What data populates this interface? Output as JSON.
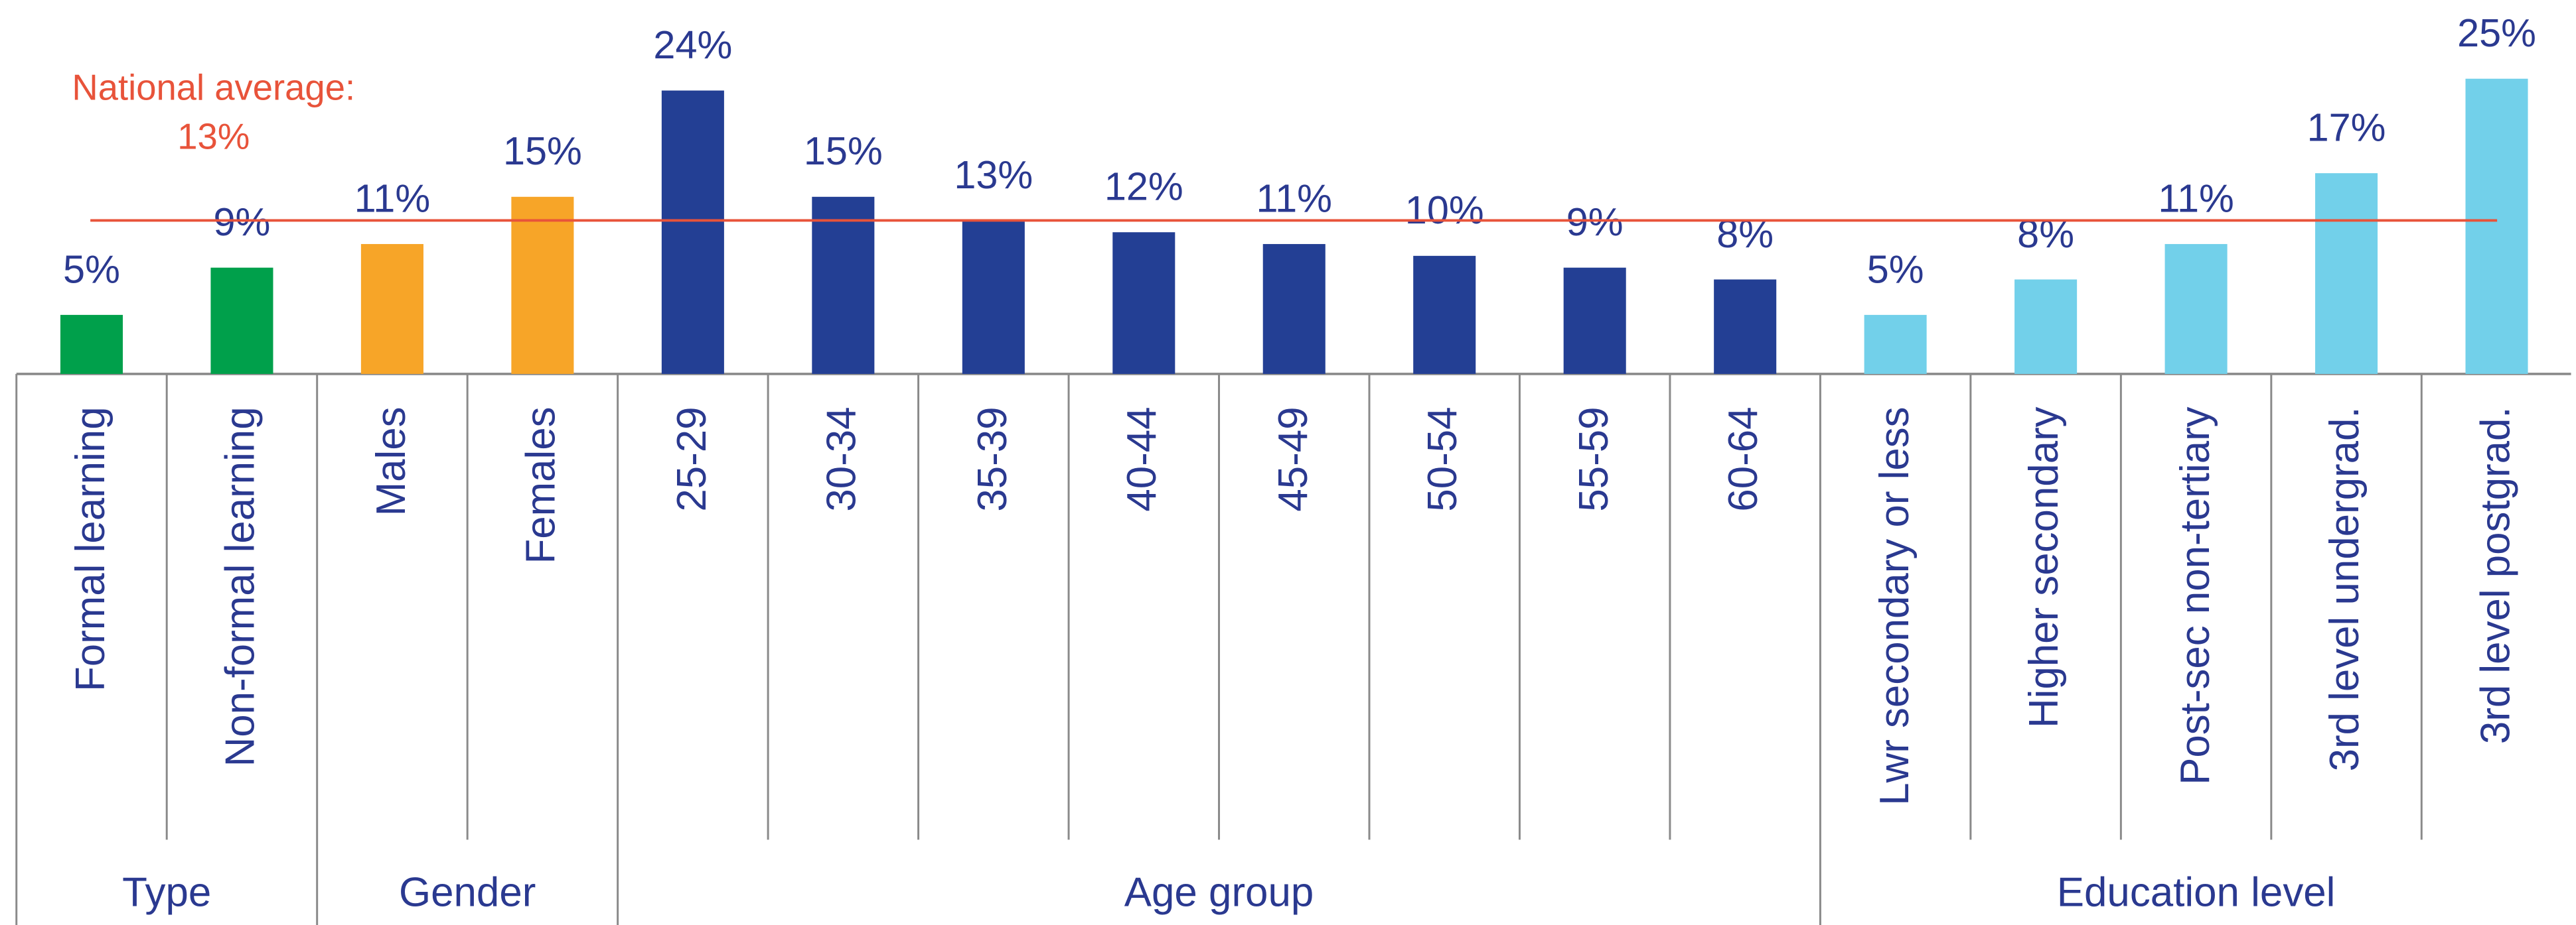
{
  "chart_data": {
    "type": "bar",
    "categories": [
      "Formal learning",
      "Non-formal learning",
      "Males",
      "Females",
      "25-29",
      "30-34",
      "35-39",
      "40-44",
      "45-49",
      "50-54",
      "55-59",
      "60-64",
      "Lwr secondary or less",
      "Higher secondary",
      "Post-sec non-tertiary",
      "3rd level undergrad.",
      "3rd level postgrad."
    ],
    "series": [
      {
        "name": "Type",
        "color": "#00a04b",
        "values": [
          5,
          9,
          null,
          null,
          null,
          null,
          null,
          null,
          null,
          null,
          null,
          null,
          null,
          null,
          null,
          null,
          null
        ],
        "value_labels": [
          "5%",
          "9%",
          null,
          null,
          null,
          null,
          null,
          null,
          null,
          null,
          null,
          null,
          null,
          null,
          null,
          null,
          null
        ]
      },
      {
        "name": "Gender",
        "color": "#f7a528",
        "values": [
          null,
          null,
          11,
          15,
          null,
          null,
          null,
          null,
          null,
          null,
          null,
          null,
          null,
          null,
          null,
          null,
          null
        ],
        "value_labels": [
          null,
          null,
          "11%",
          "15%",
          null,
          null,
          null,
          null,
          null,
          null,
          null,
          null,
          null,
          null,
          null,
          null,
          null
        ]
      },
      {
        "name": "Age group",
        "color": "#233f94",
        "values": [
          null,
          null,
          null,
          null,
          24,
          15,
          13,
          12,
          11,
          10,
          9,
          8,
          null,
          null,
          null,
          null,
          null
        ],
        "value_labels": [
          null,
          null,
          null,
          null,
          "24%",
          "15%",
          "13%",
          "12%",
          "11%",
          "10%",
          "9%",
          "8%",
          null,
          null,
          null,
          null,
          null
        ]
      },
      {
        "name": "Education level",
        "color": "#72d0ea",
        "values": [
          null,
          null,
          null,
          null,
          null,
          null,
          null,
          null,
          null,
          null,
          null,
          null,
          5,
          8,
          11,
          17,
          25
        ],
        "value_labels": [
          null,
          null,
          null,
          null,
          null,
          null,
          null,
          null,
          null,
          null,
          null,
          null,
          "5%",
          "8%",
          "11%",
          "17%",
          "25%"
        ]
      }
    ],
    "reference_line": {
      "label": "National average:",
      "value": 13,
      "value_label": "13%",
      "color": "#e8533a"
    }
  }
}
